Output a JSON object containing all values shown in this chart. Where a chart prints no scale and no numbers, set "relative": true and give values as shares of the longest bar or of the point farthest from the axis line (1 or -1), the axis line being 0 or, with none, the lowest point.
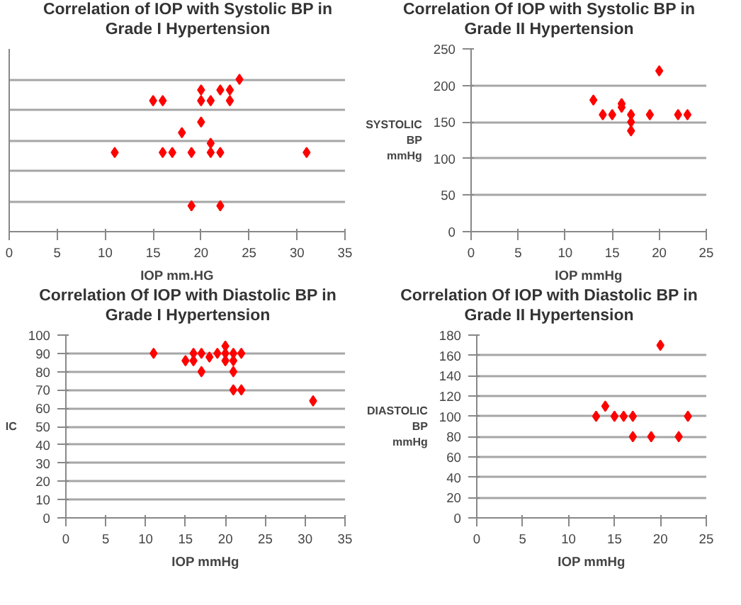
{
  "chart_data": [
    {
      "type": "scatter",
      "title": "Correlation of IOP with Systolic BP in Grade I Hypertension",
      "xlabel": "IOP mm.HG",
      "relative": true,
      "xlim": [
        0,
        35
      ],
      "xticks": [
        0,
        5,
        10,
        15,
        20,
        25,
        30,
        35
      ],
      "grid": "y",
      "marker": "diamond",
      "tick_labels": "x",
      "series": [
        {
          "color": "#ff0000",
          "x": [
            11,
            15,
            16,
            16,
            17,
            18,
            19,
            19,
            20,
            20,
            20,
            21,
            21,
            21,
            22,
            22,
            22,
            23,
            23,
            24,
            31
          ],
          "values": [
            0.52,
            0.86,
            0.86,
            0.52,
            0.52,
            0.65,
            0.52,
            0.17,
            0.93,
            0.86,
            0.72,
            0.86,
            0.58,
            0.52,
            0.93,
            0.52,
            0.17,
            0.93,
            0.86,
            1,
            0.52
          ]
        }
      ]
    },
    {
      "type": "scatter",
      "title": "Correlation Of IOP with Systolic BP in Grade II Hypertension",
      "xlabel": "IOP mmHg",
      "ylabel": "SYSTOLIC BP mmHg",
      "xlim": [
        0,
        25
      ],
      "xticks": [
        0,
        5,
        10,
        15,
        20,
        25
      ],
      "ylim": [
        0,
        250
      ],
      "yticks": [
        0,
        50,
        100,
        150,
        200,
        250
      ],
      "grid": "y",
      "marker": "diamond",
      "series": [
        {
          "color": "#ff0000",
          "x": [
            13,
            14,
            15,
            16,
            16,
            17,
            17,
            17,
            19,
            20,
            22,
            23
          ],
          "values": [
            180,
            160,
            160,
            175,
            170,
            160,
            150,
            138,
            160,
            220,
            160,
            160
          ]
        }
      ]
    },
    {
      "type": "scatter",
      "title": "Correlation Of IOP with Diastolic BP in Grade I Hypertension",
      "xlabel": "IOP mmHg",
      "ylabel": "IC",
      "xlim": [
        0,
        35
      ],
      "xticks": [
        0,
        5,
        10,
        15,
        20,
        25,
        30,
        35
      ],
      "ylim": [
        0,
        100
      ],
      "yticks": [
        0,
        10,
        20,
        30,
        40,
        50,
        60,
        70,
        80,
        90,
        100
      ],
      "grid": "y",
      "marker": "diamond",
      "series": [
        {
          "color": "#ff0000",
          "x": [
            11,
            15,
            16,
            16,
            17,
            17,
            18,
            19,
            20,
            20,
            20,
            21,
            21,
            21,
            21,
            22,
            22,
            31
          ],
          "values": [
            90,
            86,
            90,
            86,
            90,
            80,
            88,
            90,
            94,
            90,
            86,
            90,
            86,
            80,
            70,
            90,
            70,
            64
          ]
        }
      ]
    },
    {
      "type": "scatter",
      "title": "Correlation Of IOP with Diastolic BP in Grade II Hypertension",
      "xlabel": "IOP mmHg",
      "ylabel": "DIASTOLIC BP mmHg",
      "xlim": [
        0,
        25
      ],
      "xticks": [
        0,
        5,
        10,
        15,
        20,
        25
      ],
      "ylim": [
        0,
        180
      ],
      "yticks": [
        0,
        20,
        40,
        60,
        80,
        100,
        120,
        140,
        160,
        180
      ],
      "grid": "y",
      "marker": "diamond",
      "series": [
        {
          "color": "#ff0000",
          "x": [
            13,
            14,
            15,
            16,
            17,
            17,
            19,
            20,
            22,
            23
          ],
          "values": [
            100,
            110,
            100,
            100,
            100,
            80,
            80,
            170,
            80,
            100
          ]
        }
      ]
    }
  ]
}
